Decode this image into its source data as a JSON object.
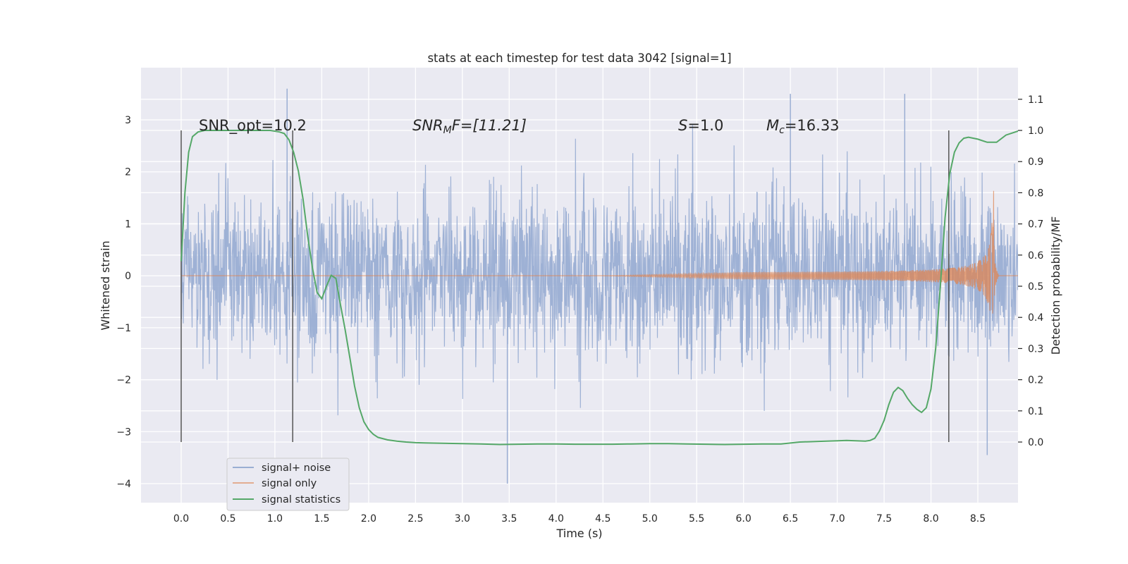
{
  "chart_data": {
    "type": "line",
    "title": "stats at each timestep for test data 3042 [signal=1]",
    "xlabel": "Time (s)",
    "ylabel": "Whitened strain",
    "y2label": "Detection probability/MF",
    "xlim": [
      -0.44,
      9.43
    ],
    "ylim": [
      -4.4,
      4.0
    ],
    "y2lim": [
      -0.13,
      1.22
    ],
    "xticks": [
      "0.0",
      "0.5",
      "1.0",
      "1.5",
      "2.0",
      "2.5",
      "3.0",
      "3.5",
      "4.0",
      "4.5",
      "5.0",
      "5.5",
      "6.0",
      "6.5",
      "7.0",
      "7.5",
      "8.0",
      "8.5"
    ],
    "yticks": [
      "3",
      "2",
      "1",
      "0",
      "−1",
      "−2",
      "−3",
      "−4"
    ],
    "y2ticks": [
      "1.1",
      "1.0",
      "0.9",
      "0.8",
      "0.7",
      "0.6",
      "0.5",
      "0.4",
      "0.3",
      "0.2",
      "0.1",
      "0.0"
    ],
    "grid": true,
    "legend_position": "lower-left",
    "colors": {
      "noise": "#9aaed3",
      "signal": "#dd8452",
      "stats": "#55a868",
      "vline": "#555555",
      "plot_bg": "#eaeaf2",
      "grid": "#ffffff"
    },
    "annotations": {
      "snr_opt": "SNR_opt=10.2",
      "snr_mf_base": "SNR",
      "snr_mf_sub": "M",
      "snr_mf_rest": "F=[11.21]",
      "s_base": "S",
      "s_rest": "=1.0",
      "mc_base": "M",
      "mc_sub": "c",
      "mc_rest": "=16.33"
    },
    "vlines_x": [
      0.0,
      1.19,
      8.19
    ],
    "series": [
      {
        "name": "signal+ noise",
        "description_range": [
          0.0,
          9.0
        ],
        "typical_envelope": [
          -1.6,
          1.6
        ],
        "peak_values": [
          [
            1.13,
            3.6
          ],
          [
            3.48,
            -4.0
          ],
          [
            6.5,
            3.5
          ],
          [
            7.72,
            3.5
          ],
          [
            8.6,
            -3.45
          ]
        ]
      },
      {
        "name": "signal only",
        "range": [
          0.0,
          9.0
        ],
        "chirp_start": 4.5,
        "merger_time": 8.67,
        "peak_amplitude": 1.85
      },
      {
        "name": "signal statistics",
        "axis": "right",
        "x": [
          0.0,
          0.04,
          0.08,
          0.12,
          0.18,
          0.25,
          0.4,
          0.6,
          0.8,
          0.95,
          1.05,
          1.1,
          1.15,
          1.2,
          1.25,
          1.3,
          1.35,
          1.4,
          1.45,
          1.5,
          1.55,
          1.6,
          1.65,
          1.7,
          1.75,
          1.8,
          1.85,
          1.9,
          1.95,
          2.0,
          2.05,
          2.1,
          2.2,
          2.3,
          2.4,
          2.5,
          2.6,
          2.8,
          3.0,
          3.2,
          3.4,
          3.6,
          3.8,
          4.0,
          4.2,
          4.4,
          4.6,
          4.8,
          5.0,
          5.2,
          5.4,
          5.6,
          5.8,
          6.0,
          6.2,
          6.4,
          6.6,
          6.8,
          7.0,
          7.1,
          7.2,
          7.3,
          7.35,
          7.4,
          7.45,
          7.5,
          7.55,
          7.6,
          7.65,
          7.7,
          7.75,
          7.8,
          7.85,
          7.9,
          7.95,
          8.0,
          8.05,
          8.1,
          8.15,
          8.2,
          8.25,
          8.3,
          8.35,
          8.4,
          8.5,
          8.6,
          8.7,
          8.8,
          8.95
        ],
        "values": [
          0.58,
          0.8,
          0.93,
          0.98,
          0.995,
          1.0,
          1.0,
          1.0,
          1.0,
          1.0,
          0.995,
          0.99,
          0.97,
          0.93,
          0.87,
          0.78,
          0.66,
          0.56,
          0.48,
          0.46,
          0.5,
          0.535,
          0.525,
          0.44,
          0.36,
          0.27,
          0.18,
          0.11,
          0.065,
          0.04,
          0.025,
          0.015,
          0.007,
          0.003,
          0.0,
          -0.002,
          -0.003,
          -0.004,
          -0.005,
          -0.006,
          -0.008,
          -0.007,
          -0.006,
          -0.006,
          -0.007,
          -0.007,
          -0.007,
          -0.006,
          -0.005,
          -0.005,
          -0.006,
          -0.007,
          -0.008,
          -0.007,
          -0.006,
          -0.006,
          0.0,
          0.002,
          0.004,
          0.005,
          0.004,
          0.003,
          0.005,
          0.012,
          0.035,
          0.07,
          0.12,
          0.16,
          0.175,
          0.165,
          0.14,
          0.12,
          0.105,
          0.095,
          0.11,
          0.17,
          0.3,
          0.5,
          0.72,
          0.86,
          0.93,
          0.96,
          0.975,
          0.978,
          0.972,
          0.962,
          0.962,
          0.985,
          1.0
        ]
      }
    ]
  }
}
